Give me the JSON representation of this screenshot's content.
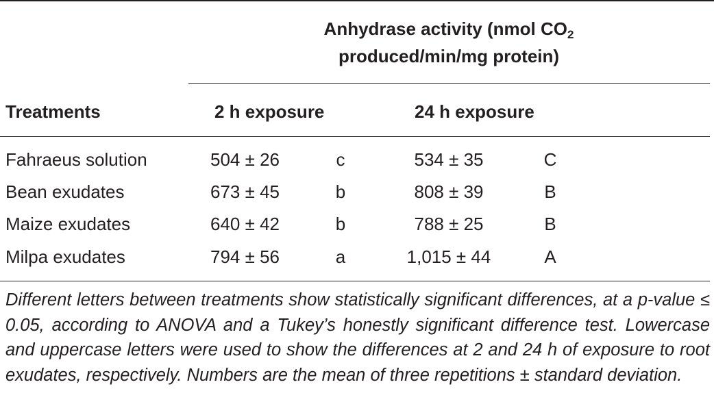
{
  "table": {
    "group_header": {
      "text": "Anhydrase activity (nmol CO",
      "subscript": "2",
      "text_line2": "produced/min/mg protein)"
    },
    "columns": {
      "treatments": "Treatments",
      "exposure_2h": "2 h exposure",
      "exposure_24h": "24 h exposure"
    },
    "rows": [
      {
        "treatment": "Fahraeus solution",
        "mean_2h": "504 ± 26",
        "letter_2h": "c",
        "mean_24h": "534 ± 35",
        "letter_24h": "C"
      },
      {
        "treatment": "Bean exudates",
        "mean_2h": "673 ± 45",
        "letter_2h": "b",
        "mean_24h": "808 ± 39",
        "letter_24h": "B"
      },
      {
        "treatment": "Maize exudates",
        "mean_2h": "640 ± 42",
        "letter_2h": "b",
        "mean_24h": "788 ± 25",
        "letter_24h": "B"
      },
      {
        "treatment": "Milpa exudates",
        "mean_2h": "794 ± 56",
        "letter_2h": "a",
        "mean_24h": "1,015 ± 44",
        "letter_24h": "A"
      }
    ],
    "footnote": "Different letters between treatments show statistically significant differences, at a p-value ≤ 0.05, according to ANOVA and a Tukey’s honestly significant difference test. Lowercase and uppercase letters were used to show the differences at 2 and 24 h of exposure to root exudates, respectively. Numbers are the mean of three repetitions ± standard deviation."
  }
}
